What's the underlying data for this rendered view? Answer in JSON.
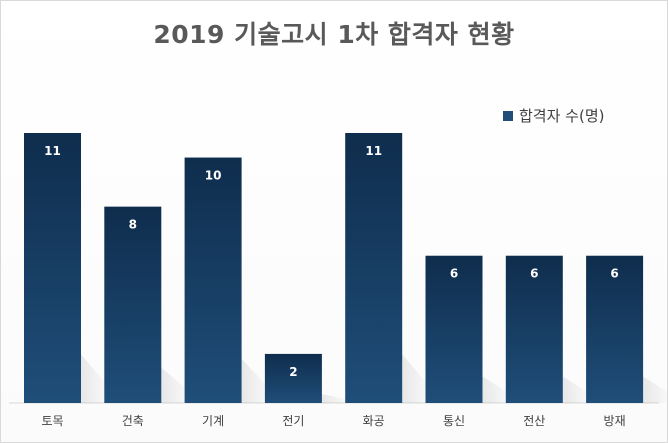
{
  "chart_data": {
    "type": "bar",
    "title": "2019 기술고시 1차 합격자 현황",
    "categories": [
      "토목",
      "건축",
      "기계",
      "전기",
      "화공",
      "통신",
      "전산",
      "방재"
    ],
    "series": [
      {
        "name": "합격자 수(명)",
        "values": [
          11,
          8,
          10,
          2,
          11,
          6,
          6,
          6
        ]
      }
    ],
    "data_labels": [
      "11",
      "8",
      "10",
      "2",
      "11",
      "6",
      "6",
      "6"
    ],
    "ylim": [
      0,
      11
    ],
    "grid": false,
    "legend_position": "top-right",
    "bar_color": "#1f4e79",
    "bar_color_top": "#0f2d4d",
    "axis_line_color": "#d9d9d9"
  }
}
